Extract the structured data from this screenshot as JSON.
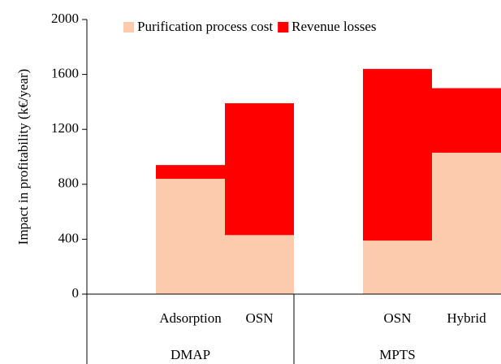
{
  "chart_data": {
    "type": "stacked_bar",
    "ylabel": "Impact in profitability (k€/year)",
    "categories": [
      null,
      "Adsorption",
      "OSN",
      null,
      "OSN",
      "Hybrid"
    ],
    "groups": [
      "DMAP",
      "MPTS"
    ],
    "series": [
      {
        "name": "Purification process cost",
        "color": "#fccbad",
        "values": [
          null,
          840,
          430,
          null,
          390,
          1030
        ]
      },
      {
        "name": "Revenue losses",
        "color": "#ff0000",
        "values": [
          null,
          100,
          960,
          null,
          1250,
          470
        ]
      }
    ],
    "ylim": [
      0,
      2000
    ],
    "yticks": [
      0,
      400,
      800,
      1200,
      1600,
      2000
    ],
    "legend": "top"
  }
}
